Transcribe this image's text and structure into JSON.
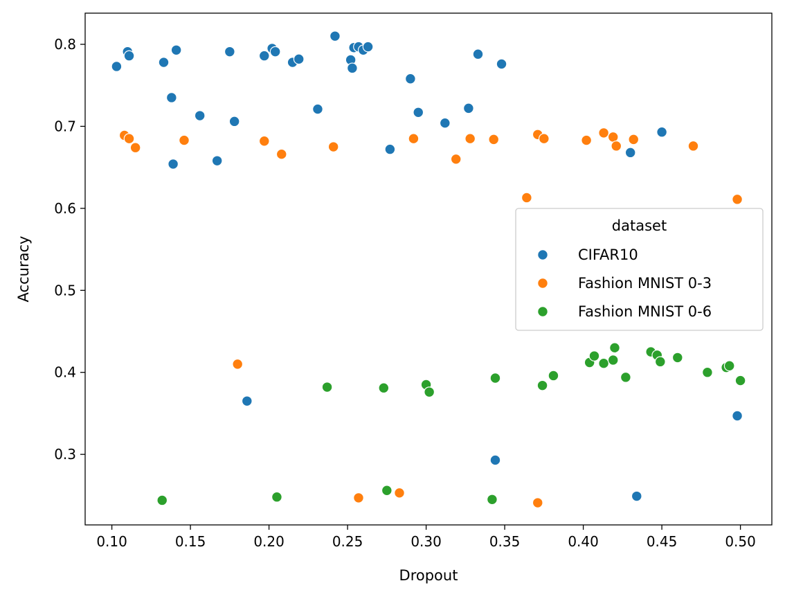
{
  "chart_data": {
    "type": "scatter",
    "title": "",
    "xlabel": "Dropout",
    "ylabel": "Accuracy",
    "xlim": [
      0.083,
      0.52
    ],
    "ylim": [
      0.214,
      0.838
    ],
    "xticks": [
      "0.10",
      "0.15",
      "0.20",
      "0.25",
      "0.30",
      "0.35",
      "0.40",
      "0.45",
      "0.50"
    ],
    "yticks": [
      "0.3",
      "0.4",
      "0.5",
      "0.6",
      "0.7",
      "0.8"
    ],
    "grid": false,
    "legend": {
      "title": "dataset",
      "placement": "center-right"
    },
    "series": [
      {
        "name": "CIFAR10",
        "color": "#1f77b4",
        "points": [
          [
            0.103,
            0.773
          ],
          [
            0.11,
            0.791
          ],
          [
            0.111,
            0.786
          ],
          [
            0.133,
            0.778
          ],
          [
            0.138,
            0.735
          ],
          [
            0.139,
            0.654
          ],
          [
            0.141,
            0.793
          ],
          [
            0.156,
            0.713
          ],
          [
            0.167,
            0.658
          ],
          [
            0.175,
            0.791
          ],
          [
            0.178,
            0.706
          ],
          [
            0.186,
            0.365
          ],
          [
            0.197,
            0.786
          ],
          [
            0.202,
            0.795
          ],
          [
            0.204,
            0.791
          ],
          [
            0.215,
            0.778
          ],
          [
            0.219,
            0.782
          ],
          [
            0.231,
            0.721
          ],
          [
            0.242,
            0.81
          ],
          [
            0.252,
            0.781
          ],
          [
            0.253,
            0.771
          ],
          [
            0.254,
            0.796
          ],
          [
            0.257,
            0.797
          ],
          [
            0.26,
            0.793
          ],
          [
            0.263,
            0.797
          ],
          [
            0.277,
            0.672
          ],
          [
            0.29,
            0.758
          ],
          [
            0.295,
            0.717
          ],
          [
            0.312,
            0.704
          ],
          [
            0.327,
            0.722
          ],
          [
            0.333,
            0.788
          ],
          [
            0.344,
            0.293
          ],
          [
            0.348,
            0.776
          ],
          [
            0.43,
            0.668
          ],
          [
            0.434,
            0.249
          ],
          [
            0.45,
            0.693
          ],
          [
            0.498,
            0.347
          ]
        ]
      },
      {
        "name": "Fashion MNIST 0-3",
        "color": "#ff7f0e",
        "points": [
          [
            0.108,
            0.689
          ],
          [
            0.111,
            0.685
          ],
          [
            0.115,
            0.674
          ],
          [
            0.146,
            0.683
          ],
          [
            0.18,
            0.41
          ],
          [
            0.197,
            0.682
          ],
          [
            0.208,
            0.666
          ],
          [
            0.241,
            0.675
          ],
          [
            0.257,
            0.247
          ],
          [
            0.283,
            0.253
          ],
          [
            0.292,
            0.685
          ],
          [
            0.319,
            0.66
          ],
          [
            0.328,
            0.685
          ],
          [
            0.343,
            0.684
          ],
          [
            0.364,
            0.613
          ],
          [
            0.371,
            0.69
          ],
          [
            0.371,
            0.241
          ],
          [
            0.375,
            0.685
          ],
          [
            0.402,
            0.683
          ],
          [
            0.413,
            0.692
          ],
          [
            0.419,
            0.687
          ],
          [
            0.421,
            0.676
          ],
          [
            0.432,
            0.684
          ],
          [
            0.47,
            0.676
          ],
          [
            0.498,
            0.611
          ]
        ]
      },
      {
        "name": "Fashion MNIST 0-6",
        "color": "#2ca02c",
        "points": [
          [
            0.132,
            0.244
          ],
          [
            0.205,
            0.248
          ],
          [
            0.237,
            0.382
          ],
          [
            0.273,
            0.381
          ],
          [
            0.275,
            0.256
          ],
          [
            0.3,
            0.385
          ],
          [
            0.302,
            0.376
          ],
          [
            0.342,
            0.245
          ],
          [
            0.344,
            0.393
          ],
          [
            0.374,
            0.384
          ],
          [
            0.381,
            0.396
          ],
          [
            0.404,
            0.412
          ],
          [
            0.407,
            0.42
          ],
          [
            0.413,
            0.411
          ],
          [
            0.419,
            0.415
          ],
          [
            0.42,
            0.43
          ],
          [
            0.427,
            0.394
          ],
          [
            0.443,
            0.425
          ],
          [
            0.447,
            0.421
          ],
          [
            0.449,
            0.413
          ],
          [
            0.46,
            0.418
          ],
          [
            0.479,
            0.4
          ],
          [
            0.491,
            0.406
          ],
          [
            0.493,
            0.408
          ],
          [
            0.5,
            0.39
          ]
        ]
      }
    ]
  }
}
